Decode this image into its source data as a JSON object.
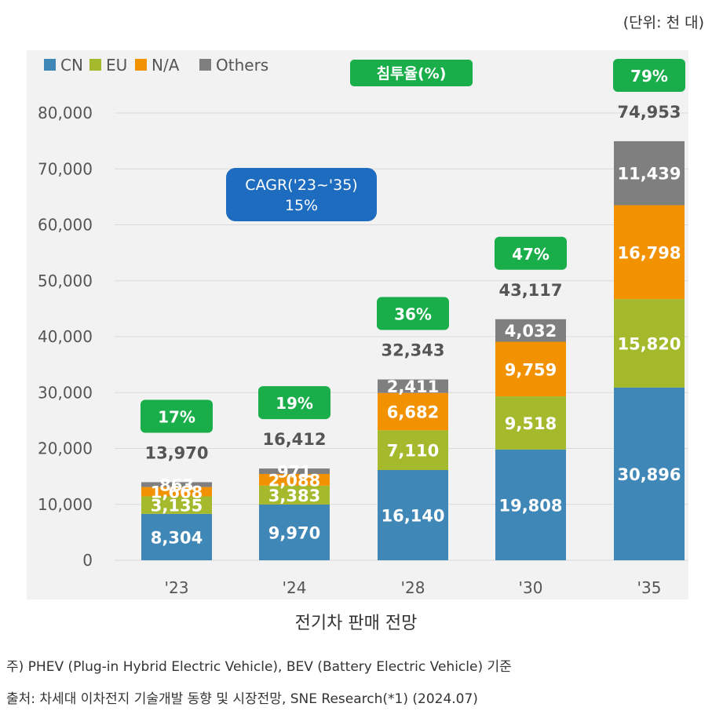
{
  "unit_label": "(단위: 천 대)",
  "caption": "전기차 판매 전망",
  "notes": [
    "주) PHEV (Plug-in Hybrid Electric Vehicle), BEV (Battery Electric Vehicle) 기준",
    "출처: 차세대 이차전지 기술개발 동향 및 시장전망, SNE Research(*1) (2024.07)"
  ],
  "cagr": {
    "line1": "CAGR('23~'35)",
    "line2": "15%"
  },
  "penetration_label": "침투율(%)",
  "colors": {
    "CN": "#3f87b7",
    "EU": "#a4b92c",
    "N/A": "#f39200",
    "Others": "#7f7f7f",
    "green": "#19ae4a",
    "blue": "#1e6cc0"
  },
  "chart_data": {
    "type": "bar",
    "stacked": true,
    "title": "전기차 판매 전망",
    "xlabel": "",
    "ylabel": "(단위: 천 대)",
    "ylim": [
      0,
      80000
    ],
    "yticks": [
      "80,000",
      "70,000",
      "60,000",
      "50,000",
      "40,000",
      "30,000",
      "20,000",
      "10,000",
      "0"
    ],
    "ytick_values": [
      80000,
      70000,
      60000,
      50000,
      40000,
      30000,
      20000,
      10000,
      0
    ],
    "categories": [
      "'23",
      "'24",
      "'28",
      "'30",
      "'35"
    ],
    "series": [
      {
        "name": "CN",
        "values": [
          8304,
          9970,
          16140,
          19808,
          30896
        ],
        "labels": [
          "8,304",
          "9,970",
          "16,140",
          "19,808",
          "30,896"
        ]
      },
      {
        "name": "EU",
        "values": [
          3135,
          3383,
          7110,
          9518,
          15820
        ],
        "labels": [
          "3,135",
          "3,383",
          "7,110",
          "9,518",
          "15,820"
        ]
      },
      {
        "name": "N/A",
        "values": [
          1668,
          2088,
          6682,
          9759,
          16798
        ],
        "labels": [
          "1,668",
          "2,088",
          "6,682",
          "9,759",
          "16,798"
        ]
      },
      {
        "name": "Others",
        "values": [
          863,
          971,
          2411,
          4032,
          11439
        ],
        "labels": [
          "863",
          "971",
          "2,411",
          "4,032",
          "11,439"
        ]
      }
    ],
    "totals": [
      "13,970",
      "16,412",
      "32,343",
      "43,117",
      "74,953"
    ],
    "penetration": [
      "17%",
      "19%",
      "36%",
      "47%",
      "79%"
    ],
    "legend": [
      "CN",
      "EU",
      "N/A",
      "Others"
    ],
    "legend_position": "top-left",
    "grid": true
  }
}
